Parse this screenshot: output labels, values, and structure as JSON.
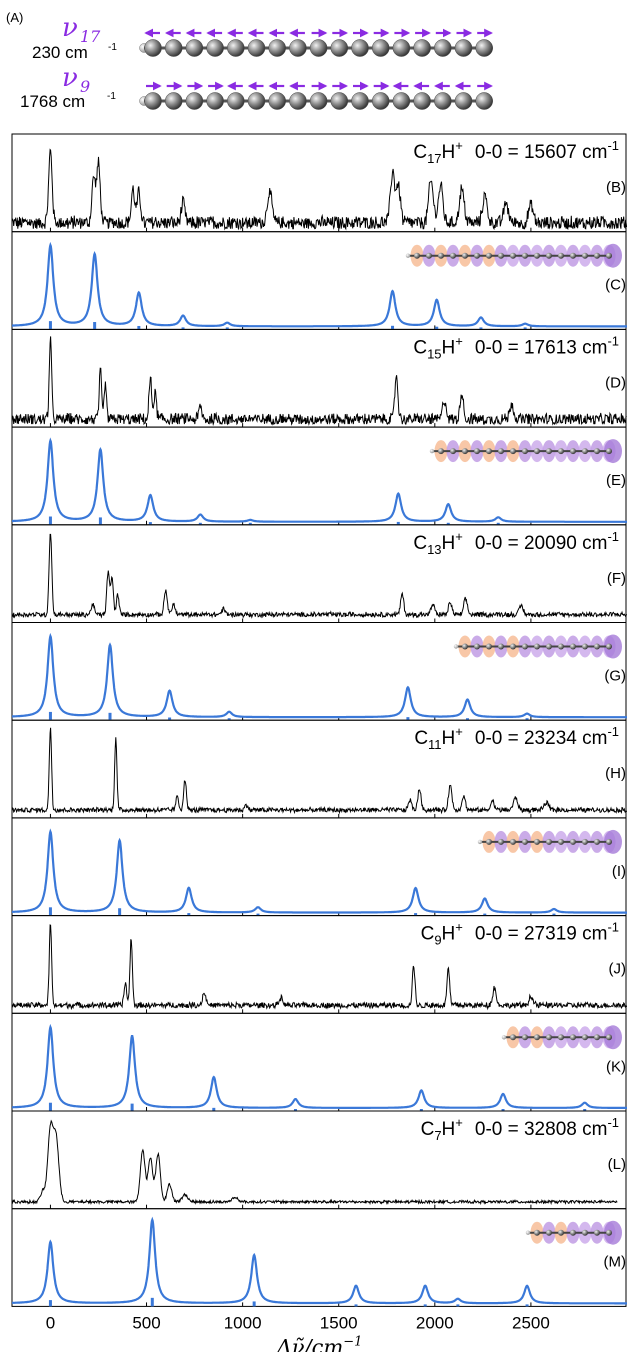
{
  "header": {
    "panel_label": "(A)",
    "modes": [
      {
        "symbol": "ν",
        "subscript": "17",
        "frequency": "230 cm",
        "unit_exp": "-1",
        "arrows": [
          "L",
          "L",
          "L",
          "L",
          "L",
          "L",
          "L",
          "L",
          "R",
          "R",
          "R",
          "R",
          "R",
          "R",
          "R",
          "R",
          "R"
        ]
      },
      {
        "symbol": "ν",
        "subscript": "9",
        "frequency": "1768 cm",
        "unit_exp": "-1",
        "arrows": [
          "R",
          "R",
          "R",
          "R",
          "L",
          "L",
          "L",
          "L",
          "R",
          "R",
          "R",
          "R",
          "L",
          "L",
          "L",
          "L",
          "R"
        ]
      }
    ],
    "accent_color": "#8a2be2"
  },
  "colors": {
    "experiment": "#000000",
    "simulation": "#3a78d8",
    "stick": "#3a78d8"
  },
  "chart_data": {
    "type": "line",
    "xlabel": "Δν̃/cm",
    "xlabel_exp": "−1",
    "xlim": [
      -200,
      3000
    ],
    "xticks": [
      0,
      500,
      1000,
      1500,
      2000,
      2500
    ],
    "panels": [
      {
        "label": "(B)",
        "kind": "experiment",
        "molecule": "C",
        "n": "17",
        "ion": "H",
        "charge": "+",
        "origin": "0-0 = 15607 cm",
        "exp": "-1",
        "peaks": [
          [
            0,
            0.82,
            9
          ],
          [
            225,
            0.52,
            9
          ],
          [
            250,
            0.68,
            9
          ],
          [
            430,
            0.38,
            9
          ],
          [
            460,
            0.34,
            9
          ],
          [
            690,
            0.22,
            10
          ],
          [
            1140,
            0.35,
            12
          ],
          [
            1780,
            0.58,
            11
          ],
          [
            1810,
            0.42,
            11
          ],
          [
            1980,
            0.48,
            12
          ],
          [
            2030,
            0.42,
            12
          ],
          [
            2140,
            0.38,
            12
          ],
          [
            2260,
            0.3,
            12
          ],
          [
            2370,
            0.22,
            12
          ],
          [
            2500,
            0.2,
            12
          ]
        ],
        "noise": 0.07,
        "baseline": 0.05,
        "xmax": 3000
      },
      {
        "label": "(C)",
        "kind": "simulation",
        "molecule": "C",
        "n": "17",
        "peaks": [
          [
            0,
            0.92
          ],
          [
            230,
            0.82
          ],
          [
            460,
            0.38
          ],
          [
            690,
            0.12
          ],
          [
            920,
            0.04
          ],
          [
            1780,
            0.4
          ],
          [
            2010,
            0.3
          ],
          [
            2240,
            0.1
          ],
          [
            2470,
            0.03
          ]
        ]
      },
      {
        "label": "(D)",
        "kind": "experiment",
        "molecule": "C",
        "n": "15",
        "ion": "H",
        "charge": "+",
        "origin": "0-0 = 17613 cm",
        "exp": "-1",
        "peaks": [
          [
            0,
            0.95,
            6
          ],
          [
            260,
            0.55,
            6
          ],
          [
            285,
            0.4,
            6
          ],
          [
            520,
            0.45,
            7
          ],
          [
            545,
            0.3,
            7
          ],
          [
            780,
            0.14,
            8
          ],
          [
            1800,
            0.5,
            8
          ],
          [
            2050,
            0.22,
            10
          ],
          [
            2140,
            0.32,
            8
          ],
          [
            2400,
            0.18,
            10
          ]
        ],
        "noise": 0.06,
        "baseline": 0.04,
        "xmax": 3000
      },
      {
        "label": "(E)",
        "kind": "simulation",
        "molecule": "C",
        "n": "15",
        "peaks": [
          [
            0,
            0.92
          ],
          [
            260,
            0.82
          ],
          [
            520,
            0.3
          ],
          [
            780,
            0.08
          ],
          [
            1040,
            0.02
          ],
          [
            1810,
            0.32
          ],
          [
            2070,
            0.2
          ],
          [
            2330,
            0.05
          ]
        ]
      },
      {
        "label": "(F)",
        "kind": "experiment",
        "molecule": "C",
        "n": "13",
        "ion": "H",
        "charge": "+",
        "origin": "0-0 = 20090 cm",
        "exp": "-1",
        "peaks": [
          [
            0,
            0.95,
            7
          ],
          [
            220,
            0.12,
            8
          ],
          [
            300,
            0.48,
            7
          ],
          [
            320,
            0.42,
            7
          ],
          [
            350,
            0.22,
            7
          ],
          [
            600,
            0.28,
            8
          ],
          [
            640,
            0.12,
            8
          ],
          [
            900,
            0.06,
            10
          ],
          [
            1830,
            0.24,
            8
          ],
          [
            1990,
            0.12,
            9
          ],
          [
            2080,
            0.14,
            9
          ],
          [
            2160,
            0.18,
            9
          ],
          [
            2450,
            0.1,
            10
          ]
        ],
        "noise": 0.025,
        "baseline": 0.05,
        "xmax": 3000
      },
      {
        "label": "(G)",
        "kind": "simulation",
        "molecule": "C",
        "n": "13",
        "peaks": [
          [
            0,
            0.92
          ],
          [
            310,
            0.82
          ],
          [
            620,
            0.3
          ],
          [
            930,
            0.06
          ],
          [
            1860,
            0.34
          ],
          [
            2170,
            0.2
          ],
          [
            2480,
            0.04
          ]
        ]
      },
      {
        "label": "(H)",
        "kind": "experiment",
        "molecule": "C",
        "n": "11",
        "ion": "H",
        "charge": "+",
        "origin": "0-0 = 23234 cm",
        "exp": "-1",
        "peaks": [
          [
            0,
            0.95,
            6
          ],
          [
            340,
            0.82,
            6
          ],
          [
            660,
            0.15,
            7
          ],
          [
            700,
            0.35,
            7
          ],
          [
            1020,
            0.06,
            8
          ],
          [
            1870,
            0.12,
            8
          ],
          [
            1920,
            0.25,
            8
          ],
          [
            2080,
            0.28,
            9
          ],
          [
            2150,
            0.16,
            9
          ],
          [
            2300,
            0.1,
            10
          ],
          [
            2420,
            0.14,
            11
          ],
          [
            2580,
            0.08,
            12
          ]
        ],
        "noise": 0.025,
        "baseline": 0.05,
        "xmax": 3000
      },
      {
        "label": "(I)",
        "kind": "simulation",
        "molecule": "C",
        "n": "11",
        "peaks": [
          [
            0,
            0.92
          ],
          [
            360,
            0.82
          ],
          [
            720,
            0.28
          ],
          [
            1080,
            0.06
          ],
          [
            1900,
            0.28
          ],
          [
            2260,
            0.16
          ],
          [
            2620,
            0.04
          ]
        ]
      },
      {
        "label": "(J)",
        "kind": "experiment",
        "molecule": "C",
        "n": "9",
        "ion": "H",
        "charge": "+",
        "origin": "0-0 = 27319 cm",
        "exp": "-1",
        "peaks": [
          [
            0,
            0.95,
            6
          ],
          [
            390,
            0.25,
            7
          ],
          [
            420,
            0.78,
            6
          ],
          [
            800,
            0.14,
            9
          ],
          [
            1200,
            0.08,
            10
          ],
          [
            1890,
            0.45,
            7
          ],
          [
            2070,
            0.42,
            7
          ],
          [
            2310,
            0.2,
            9
          ],
          [
            2500,
            0.1,
            10
          ]
        ],
        "noise": 0.03,
        "baseline": 0.05,
        "xmax": 3000
      },
      {
        "label": "(K)",
        "kind": "simulation",
        "molecule": "C",
        "n": "9",
        "peaks": [
          [
            0,
            0.92
          ],
          [
            425,
            0.82
          ],
          [
            850,
            0.35
          ],
          [
            1275,
            0.1
          ],
          [
            1930,
            0.2
          ],
          [
            2355,
            0.16
          ],
          [
            2780,
            0.06
          ]
        ]
      },
      {
        "label": "(L)",
        "kind": "experiment",
        "molecule": "C",
        "n": "7",
        "ion": "H",
        "charge": "+",
        "origin": "0-0 = 32808 cm",
        "exp": "-1",
        "peaks": [
          [
            0,
            0.82,
            14
          ],
          [
            30,
            0.7,
            14
          ],
          [
            -40,
            0.12,
            12
          ],
          [
            480,
            0.6,
            12
          ],
          [
            520,
            0.5,
            12
          ],
          [
            560,
            0.55,
            12
          ],
          [
            620,
            0.2,
            12
          ],
          [
            700,
            0.08,
            15
          ],
          [
            960,
            0.05,
            15
          ]
        ],
        "noise": 0.015,
        "baseline": 0.04,
        "xmax": 2950
      },
      {
        "label": "(M)",
        "kind": "simulation",
        "molecule": "C",
        "n": "7",
        "peaks": [
          [
            0,
            0.7
          ],
          [
            530,
            0.95
          ],
          [
            1060,
            0.55
          ],
          [
            1590,
            0.2
          ],
          [
            1950,
            0.2
          ],
          [
            2120,
            0.05
          ],
          [
            2480,
            0.2
          ]
        ]
      }
    ]
  }
}
